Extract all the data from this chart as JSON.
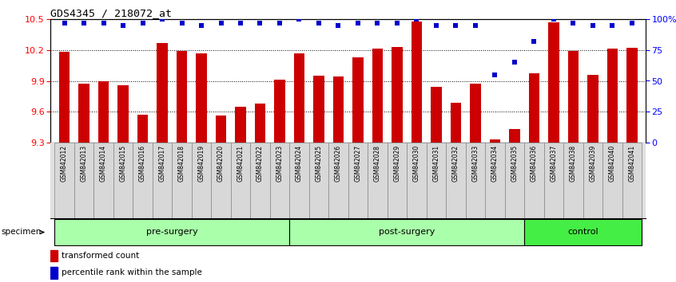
{
  "title": "GDS4345 / 218072_at",
  "samples": [
    "GSM842012",
    "GSM842013",
    "GSM842014",
    "GSM842015",
    "GSM842016",
    "GSM842017",
    "GSM842018",
    "GSM842019",
    "GSM842020",
    "GSM842021",
    "GSM842022",
    "GSM842023",
    "GSM842024",
    "GSM842025",
    "GSM842026",
    "GSM842027",
    "GSM842028",
    "GSM842029",
    "GSM842030",
    "GSM842031",
    "GSM842032",
    "GSM842033",
    "GSM842034",
    "GSM842035",
    "GSM842036",
    "GSM842037",
    "GSM842038",
    "GSM842039",
    "GSM842040",
    "GSM842041"
  ],
  "bar_values": [
    10.18,
    9.87,
    9.9,
    9.86,
    9.57,
    10.27,
    10.19,
    10.17,
    9.56,
    9.65,
    9.68,
    9.91,
    10.17,
    9.95,
    9.94,
    10.13,
    10.21,
    10.23,
    10.48,
    9.84,
    9.69,
    9.87,
    9.33,
    9.43,
    9.97,
    10.47,
    10.19,
    9.96,
    10.21,
    10.22
  ],
  "percentile_values": [
    97,
    97,
    97,
    95,
    97,
    100,
    97,
    95,
    97,
    97,
    97,
    97,
    100,
    97,
    95,
    97,
    97,
    97,
    100,
    95,
    95,
    95,
    55,
    65,
    82,
    100,
    97,
    95,
    95,
    97
  ],
  "group_data": [
    {
      "label": "pre-surgery",
      "start": 0,
      "end": 11,
      "color": "#AAFFAA"
    },
    {
      "label": "post-surgery",
      "start": 12,
      "end": 23,
      "color": "#AAFFAA"
    },
    {
      "label": "control",
      "start": 24,
      "end": 29,
      "color": "#44EE44"
    }
  ],
  "ylim_left": [
    9.3,
    10.5
  ],
  "ylim_right": [
    0,
    100
  ],
  "yticks_left": [
    9.3,
    9.6,
    9.9,
    10.2,
    10.5
  ],
  "yticks_right": [
    0,
    25,
    50,
    75,
    100
  ],
  "bar_color": "#CC0000",
  "dot_color": "#0000CC",
  "bar_width": 0.55,
  "gridlines": [
    9.6,
    9.9,
    10.2
  ]
}
